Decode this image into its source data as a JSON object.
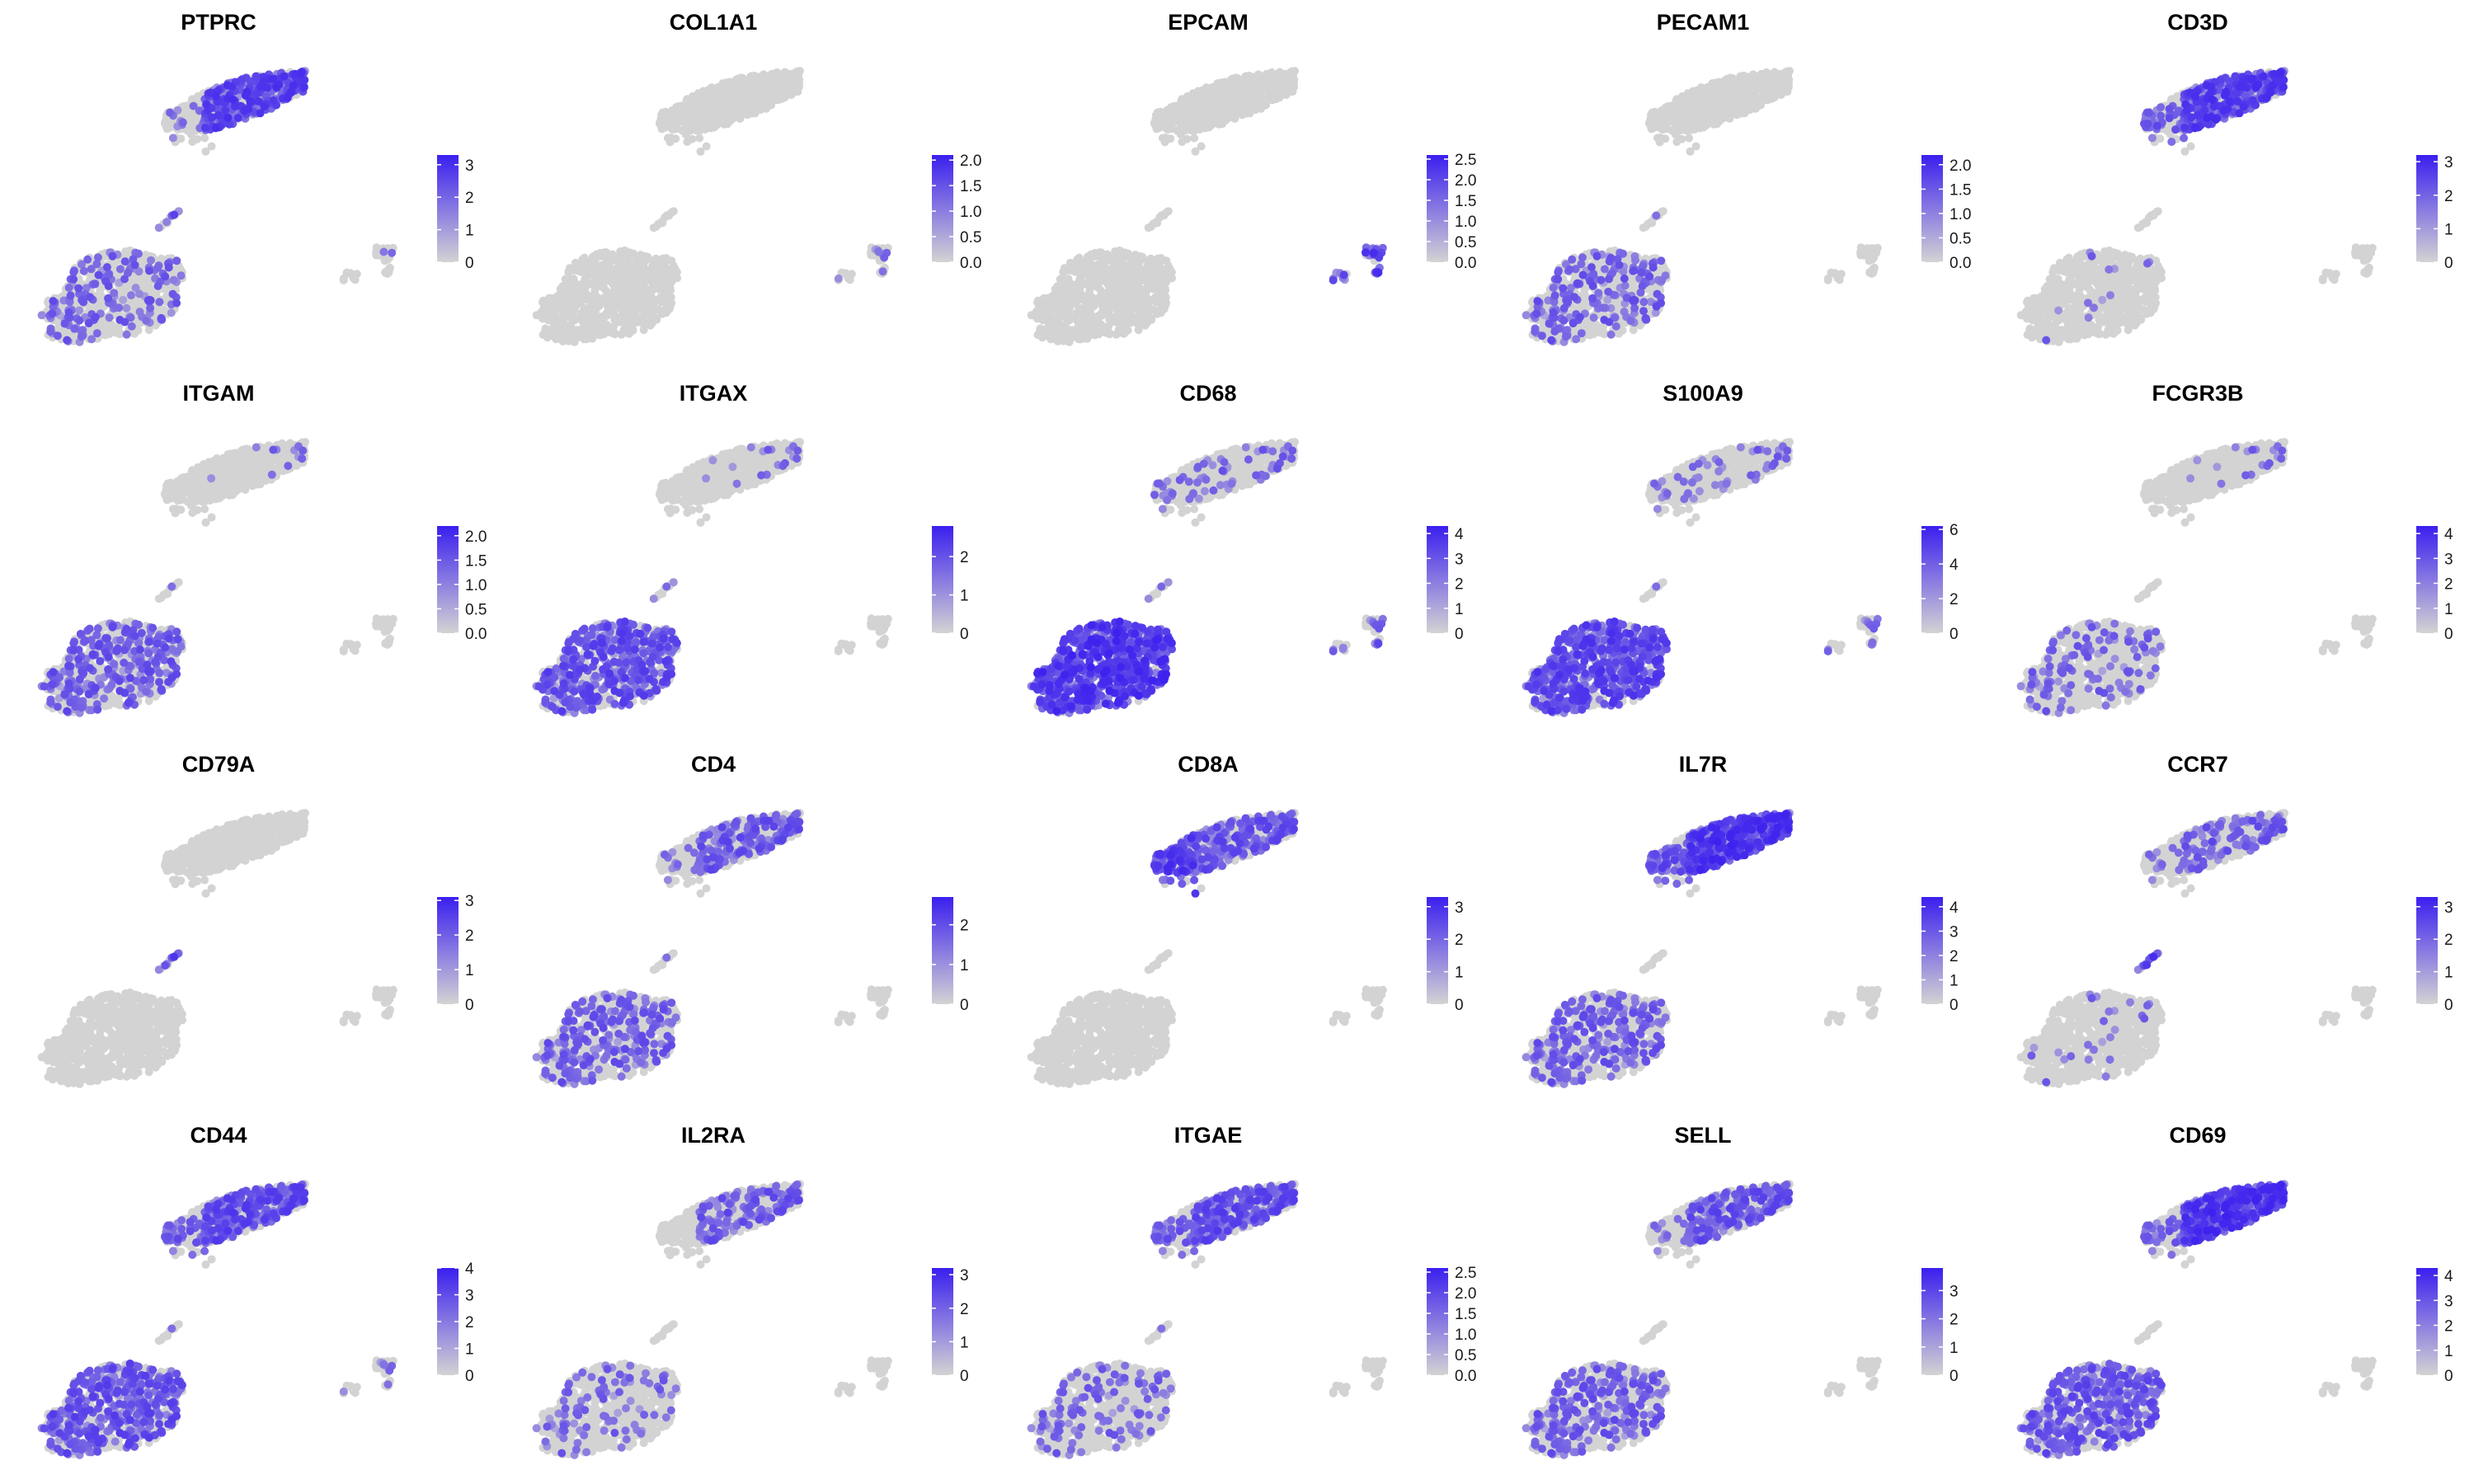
{
  "chart_data": [
    {
      "type": "scatter",
      "title": "PTPRC",
      "legend_ticks": [
        "3",
        "2",
        "1",
        "0"
      ],
      "legend_max": 3.3,
      "expr": {
        "top": 0.75,
        "topL": 0.05,
        "stalk": 0.35,
        "bottom": 0.22,
        "right": 0.02,
        "hot": "top"
      }
    },
    {
      "type": "scatter",
      "title": "COL1A1",
      "legend_ticks": [
        "2.0",
        "1.5",
        "1.0",
        "0.5",
        "0.0"
      ],
      "legend_max": 2.1,
      "expr": {
        "top": 0.0,
        "topL": 0.0,
        "stalk": 0.0,
        "bottom": 0.0,
        "right": 0.12,
        "hot": "right"
      }
    },
    {
      "type": "scatter",
      "title": "EPCAM",
      "legend_ticks": [
        "2.5",
        "2.0",
        "1.5",
        "1.0",
        "0.5",
        "0.0"
      ],
      "legend_max": 2.6,
      "expr": {
        "top": 0.0,
        "topL": 0.0,
        "stalk": 0.0,
        "bottom": 0.0,
        "right": 0.8,
        "hot": "right"
      }
    },
    {
      "type": "scatter",
      "title": "PECAM1",
      "legend_ticks": [
        "2.0",
        "1.5",
        "1.0",
        "0.5",
        "0.0"
      ],
      "legend_max": 2.2,
      "expr": {
        "top": 0.0,
        "topL": 0.0,
        "stalk": 0.05,
        "bottom": 0.25,
        "right": 0.0,
        "hot": "bottom"
      }
    },
    {
      "type": "scatter",
      "title": "CD3D",
      "legend_ticks": [
        "3",
        "2",
        "1",
        "0"
      ],
      "legend_max": 3.2,
      "expr": {
        "top": 0.8,
        "topL": 0.3,
        "stalk": 0.0,
        "bottom": 0.03,
        "right": 0.0,
        "hot": "top"
      }
    },
    {
      "type": "scatter",
      "title": "ITGAM",
      "legend_ticks": [
        "2.0",
        "1.5",
        "1.0",
        "0.5",
        "0.0"
      ],
      "legend_max": 2.2,
      "expr": {
        "top": 0.03,
        "topL": 0.0,
        "stalk": 0.1,
        "bottom": 0.35,
        "right": 0.0,
        "hot": "bottom"
      }
    },
    {
      "type": "scatter",
      "title": "ITGAX",
      "legend_ticks": [
        "2",
        "1",
        "0"
      ],
      "legend_max": 2.8,
      "expr": {
        "top": 0.05,
        "topL": 0.0,
        "stalk": 0.3,
        "bottom": 0.55,
        "right": 0.0,
        "hot": "bottom"
      }
    },
    {
      "type": "scatter",
      "title": "CD68",
      "legend_ticks": [
        "4",
        "3",
        "2",
        "1",
        "0"
      ],
      "legend_max": 4.3,
      "expr": {
        "top": 0.12,
        "topL": 0.1,
        "stalk": 0.3,
        "bottom": 0.95,
        "right": 0.35,
        "hot": "bottom"
      }
    },
    {
      "type": "scatter",
      "title": "S100A9",
      "legend_ticks": [
        "6",
        "4",
        "2",
        "0"
      ],
      "legend_max": 6.2,
      "expr": {
        "top": 0.1,
        "topL": 0.05,
        "stalk": 0.1,
        "bottom": 0.7,
        "right": 0.2,
        "hot": "bottom"
      }
    },
    {
      "type": "scatter",
      "title": "FCGR3B",
      "legend_ticks": [
        "4",
        "3",
        "2",
        "1",
        "0"
      ],
      "legend_max": 4.3,
      "expr": {
        "top": 0.06,
        "topL": 0.0,
        "stalk": 0.0,
        "bottom": 0.15,
        "right": 0.0,
        "hot": "bottom"
      }
    },
    {
      "type": "scatter",
      "title": "CD79A",
      "legend_ticks": [
        "3",
        "2",
        "1",
        "0"
      ],
      "legend_max": 3.1,
      "expr": {
        "top": 0.0,
        "topL": 0.0,
        "stalk": 0.6,
        "bottom": 0.0,
        "right": 0.0,
        "hot": "stalk"
      }
    },
    {
      "type": "scatter",
      "title": "CD4",
      "legend_ticks": [
        "2",
        "1",
        "0"
      ],
      "legend_max": 2.7,
      "expr": {
        "top": 0.4,
        "topL": 0.05,
        "stalk": 0.05,
        "bottom": 0.3,
        "right": 0.0,
        "hot": "top"
      }
    },
    {
      "type": "scatter",
      "title": "CD8A",
      "legend_ticks": [
        "3",
        "2",
        "1",
        "0"
      ],
      "legend_max": 3.3,
      "expr": {
        "top": 0.45,
        "topL": 0.85,
        "stalk": 0.0,
        "bottom": 0.0,
        "right": 0.0,
        "hot": "top"
      }
    },
    {
      "type": "scatter",
      "title": "IL7R",
      "legend_ticks": [
        "4",
        "3",
        "2",
        "1",
        "0"
      ],
      "legend_max": 4.4,
      "expr": {
        "top": 0.95,
        "topL": 0.5,
        "stalk": 0.0,
        "bottom": 0.3,
        "right": 0.0,
        "hot": "top"
      }
    },
    {
      "type": "scatter",
      "title": "CCR7",
      "legend_ticks": [
        "3",
        "2",
        "1",
        "0"
      ],
      "legend_max": 3.3,
      "expr": {
        "top": 0.3,
        "topL": 0.05,
        "stalk": 0.75,
        "bottom": 0.05,
        "right": 0.0,
        "hot": "stalk"
      }
    },
    {
      "type": "scatter",
      "title": "CD44",
      "legend_ticks": [
        "4",
        "3",
        "2",
        "1",
        "0"
      ],
      "legend_max": 4.0,
      "expr": {
        "top": 0.6,
        "topL": 0.3,
        "stalk": 0.1,
        "bottom": 0.5,
        "right": 0.12,
        "hot": "top"
      }
    },
    {
      "type": "scatter",
      "title": "IL2RA",
      "legend_ticks": [
        "3",
        "2",
        "1",
        "0"
      ],
      "legend_max": 3.2,
      "expr": {
        "top": 0.35,
        "topL": 0.0,
        "stalk": 0.0,
        "bottom": 0.12,
        "right": 0.0,
        "hot": "top"
      }
    },
    {
      "type": "scatter",
      "title": "ITGAE",
      "legend_ticks": [
        "2.5",
        "2.0",
        "1.5",
        "1.0",
        "0.5",
        "0.0"
      ],
      "legend_max": 2.6,
      "expr": {
        "top": 0.55,
        "topL": 0.3,
        "stalk": 0.05,
        "bottom": 0.15,
        "right": 0.0,
        "hot": "top"
      }
    },
    {
      "type": "scatter",
      "title": "SELL",
      "legend_ticks": [
        "3",
        "2",
        "1",
        "0"
      ],
      "legend_max": 3.8,
      "expr": {
        "top": 0.45,
        "topL": 0.05,
        "stalk": 0.0,
        "bottom": 0.3,
        "right": 0.0,
        "hot": "top"
      }
    },
    {
      "type": "scatter",
      "title": "CD69",
      "legend_ticks": [
        "4",
        "3",
        "2",
        "1",
        "0"
      ],
      "legend_max": 4.3,
      "expr": {
        "top": 0.95,
        "topL": 0.25,
        "stalk": 0.0,
        "bottom": 0.45,
        "right": 0.0,
        "hot": "top"
      }
    }
  ],
  "colors": {
    "low": "#d3d3d3",
    "high": "#3b1fef",
    "title": "#000000",
    "tick": "#1a1a1a"
  }
}
